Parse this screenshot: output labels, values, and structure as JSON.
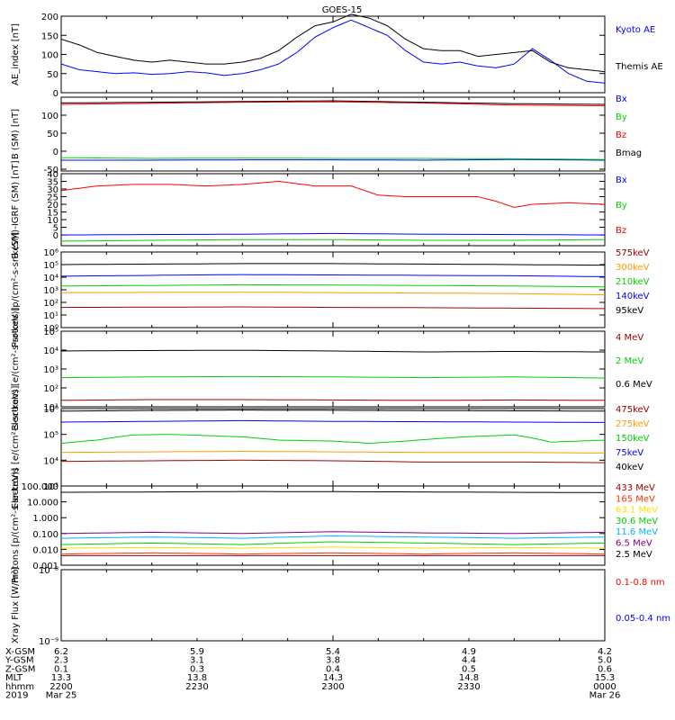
{
  "title": "GOES-15",
  "x_axis": {
    "rows": [
      {
        "label": "X-GSM",
        "values": [
          "6.2",
          "5.9",
          "5.4",
          "4.9",
          "4.2"
        ]
      },
      {
        "label": "Y-GSM",
        "values": [
          "2.3",
          "3.1",
          "3.8",
          "4.4",
          "5.0"
        ]
      },
      {
        "label": "Z-GSM",
        "values": [
          "0.1",
          "0.3",
          "0.4",
          "0.5",
          "0.6"
        ]
      },
      {
        "label": "MLT",
        "values": [
          "13.3",
          "13.8",
          "14.3",
          "14.8",
          "15.3"
        ]
      },
      {
        "label": "hhmm",
        "values": [
          "2200",
          "2230",
          "2300",
          "2330",
          "0000"
        ]
      },
      {
        "label": "2019",
        "values": [
          "Mar 25",
          "",
          "",
          "",
          "Mar 26"
        ]
      }
    ]
  },
  "chart_data": [
    {
      "type": "line",
      "ylabel": "AE_index [nT]",
      "ylim": [
        0,
        200
      ],
      "yticks": [
        0,
        50,
        100,
        150,
        200
      ],
      "ytick_labels": [
        "0",
        "50",
        "100",
        "150",
        "200"
      ],
      "series": [
        {
          "name": "Kyoto AE",
          "color": "#0000ff",
          "x": [
            0,
            2,
            4,
            6,
            8,
            10,
            12,
            14,
            16,
            18,
            20,
            22,
            24,
            26,
            28,
            30,
            32,
            34,
            36,
            38,
            40,
            42,
            44,
            46,
            48,
            50,
            52,
            54,
            56,
            58,
            60
          ],
          "values": [
            75,
            60,
            55,
            50,
            52,
            48,
            50,
            55,
            52,
            45,
            50,
            60,
            75,
            105,
            145,
            170,
            190,
            170,
            150,
            110,
            80,
            75,
            80,
            70,
            65,
            75,
            115,
            85,
            50,
            30,
            25
          ]
        },
        {
          "name": "Themis AE",
          "color": "#000000",
          "x": [
            0,
            2,
            4,
            6,
            8,
            10,
            12,
            14,
            16,
            18,
            20,
            22,
            24,
            26,
            28,
            30,
            32,
            34,
            36,
            38,
            40,
            42,
            44,
            46,
            48,
            50,
            52,
            54,
            56,
            58,
            60
          ],
          "values": [
            140,
            125,
            105,
            95,
            85,
            80,
            85,
            80,
            75,
            75,
            80,
            90,
            110,
            145,
            175,
            185,
            205,
            195,
            175,
            140,
            115,
            110,
            110,
            95,
            100,
            105,
            110,
            80,
            65,
            60,
            55
          ]
        }
      ]
    },
    {
      "type": "line",
      "ylabel": "B (SM) [nT]",
      "ylim": [
        -55,
        150
      ],
      "yticks": [
        -50,
        0,
        50,
        100
      ],
      "ytick_labels": [
        "-50",
        "0",
        "50",
        "100"
      ],
      "series": [
        {
          "name": "Bx",
          "color": "#0000ff",
          "x": [
            0,
            10,
            20,
            30,
            40,
            50,
            60
          ],
          "values": [
            -25,
            -25,
            -24,
            -24,
            -25,
            -23,
            -25
          ]
        },
        {
          "name": "By",
          "color": "#00d000",
          "x": [
            0,
            10,
            20,
            30,
            40,
            50,
            60
          ],
          "values": [
            -18,
            -20,
            -19,
            -20,
            -20,
            -21,
            -23
          ]
        },
        {
          "name": "Bz",
          "color": "#ff0000",
          "x": [
            0,
            10,
            20,
            30,
            40,
            50,
            60
          ],
          "values": [
            130,
            133,
            136,
            137,
            134,
            128,
            126
          ]
        },
        {
          "name": "Bmag",
          "color": "#000000",
          "x": [
            0,
            10,
            20,
            30,
            40,
            50,
            60
          ],
          "values": [
            134,
            136,
            138,
            140,
            136,
            132,
            130
          ]
        }
      ]
    },
    {
      "type": "line",
      "ylabel": "B (SM)-IGRF (SM) [nT]",
      "ylim": [
        -7,
        40
      ],
      "yticks": [
        0,
        5,
        10,
        15,
        20,
        25,
        30,
        35,
        40
      ],
      "ytick_labels": [
        "0",
        "5",
        "10",
        "15",
        "20",
        "25",
        "30",
        "35",
        "40"
      ],
      "series": [
        {
          "name": "Bx",
          "color": "#0000ff",
          "x": [
            0,
            10,
            20,
            30,
            40,
            50,
            60
          ],
          "values": [
            0,
            0.3,
            0.5,
            1,
            0.5,
            0.3,
            0
          ]
        },
        {
          "name": "By",
          "color": "#00d000",
          "x": [
            0,
            10,
            20,
            30,
            40,
            50,
            60
          ],
          "values": [
            -4,
            -3.5,
            -3,
            -3,
            -3.5,
            -3.5,
            -3
          ]
        },
        {
          "name": "Bz",
          "color": "#ff0000",
          "x": [
            0,
            4,
            8,
            12,
            16,
            20,
            24,
            28,
            32,
            35,
            38,
            42,
            46,
            48,
            50,
            52,
            56,
            60
          ],
          "values": [
            29,
            32,
            33,
            33,
            32,
            33,
            35,
            32,
            32,
            26,
            25,
            25,
            25,
            22,
            18,
            20,
            21,
            20
          ]
        }
      ]
    },
    {
      "type": "line",
      "scale": "log",
      "ylabel": "Protons [p/(cm²-s-sr-keV)]",
      "ylim": [
        1,
        1000000
      ],
      "yticks": [
        1,
        10,
        100,
        1000,
        10000,
        100000,
        1000000
      ],
      "ytick_labels": [
        "10⁰",
        "10¹",
        "10²",
        "10³",
        "10⁴",
        "10⁵",
        "10⁶"
      ],
      "series": [
        {
          "name": "575keV",
          "color": "#a00000",
          "x": [
            0,
            10,
            20,
            30,
            40,
            50,
            60
          ],
          "values": [
            40,
            42,
            44,
            40,
            38,
            35,
            32
          ]
        },
        {
          "name": "300keV",
          "color": "#ff9900",
          "x": [
            0,
            10,
            20,
            30,
            40,
            50,
            60
          ],
          "values": [
            600,
            620,
            650,
            600,
            550,
            500,
            400
          ]
        },
        {
          "name": "210keV",
          "color": "#00d000",
          "x": [
            0,
            10,
            20,
            30,
            40,
            50,
            60
          ],
          "values": [
            2000,
            2200,
            2500,
            2400,
            2200,
            2000,
            1700
          ]
        },
        {
          "name": "140keV",
          "color": "#0000ff",
          "x": [
            0,
            10,
            20,
            30,
            40,
            50,
            60
          ],
          "values": [
            12000,
            14000,
            16000,
            15000,
            14000,
            13000,
            11000
          ]
        },
        {
          "name": "95keV",
          "color": "#000000",
          "x": [
            0,
            10,
            20,
            30,
            40,
            50,
            60
          ],
          "values": [
            100000,
            110000,
            120000,
            120000,
            110000,
            100000,
            90000
          ]
        }
      ]
    },
    {
      "type": "line",
      "scale": "log",
      "ylabel": "Electrons [e/(cm²-s-sr-keV)]",
      "ylim": [
        10,
        100000
      ],
      "yticks": [
        10,
        100,
        1000,
        10000,
        100000
      ],
      "ytick_labels": [
        "10¹",
        "10²",
        "10³",
        "10⁴",
        "10⁵"
      ],
      "series": [
        {
          "name": "4 MeV",
          "color": "#a00000",
          "x": [
            0,
            10,
            20,
            30,
            40,
            50,
            60
          ],
          "values": [
            22,
            24,
            24,
            23,
            22,
            23,
            22
          ]
        },
        {
          "name": "2 MeV",
          "color": "#00d000",
          "x": [
            0,
            10,
            20,
            30,
            40,
            50,
            60
          ],
          "values": [
            350,
            380,
            400,
            380,
            350,
            380,
            330
          ]
        },
        {
          "name": "0.6 MeV",
          "color": "#000000",
          "x": [
            0,
            10,
            20,
            30,
            40,
            50,
            60
          ],
          "values": [
            9000,
            9500,
            9800,
            9000,
            8000,
            8500,
            8000
          ]
        }
      ]
    },
    {
      "type": "line",
      "scale": "log",
      "ylabel": "Electrons [e/(cm²-s-sr-keV)]",
      "ylim": [
        1000,
        1000000
      ],
      "yticks": [
        1000,
        10000,
        100000,
        1000000
      ],
      "ytick_labels": [
        "10³",
        "10⁴",
        "10⁵",
        "10⁶"
      ],
      "series": [
        {
          "name": "475keV",
          "color": "#a00000",
          "x": [
            0,
            10,
            20,
            30,
            40,
            50,
            60
          ],
          "values": [
            9000,
            9500,
            10000,
            9500,
            8500,
            8500,
            8000
          ]
        },
        {
          "name": "275keV",
          "color": "#ff9900",
          "x": [
            0,
            10,
            20,
            30,
            40,
            50,
            60
          ],
          "values": [
            20000,
            21000,
            22000,
            21000,
            20000,
            20000,
            19000
          ]
        },
        {
          "name": "150keV",
          "color": "#00d000",
          "x": [
            0,
            4,
            8,
            12,
            16,
            20,
            24,
            30,
            34,
            38,
            42,
            46,
            50,
            54,
            57,
            60
          ],
          "values": [
            45000,
            60000,
            95000,
            100000,
            90000,
            80000,
            60000,
            55000,
            45000,
            55000,
            70000,
            85000,
            95000,
            50000,
            55000,
            60000
          ]
        },
        {
          "name": "75keV",
          "color": "#0000ff",
          "x": [
            0,
            10,
            20,
            30,
            40,
            50,
            60
          ],
          "values": [
            300000,
            320000,
            340000,
            320000,
            310000,
            300000,
            290000
          ]
        },
        {
          "name": "40keV",
          "color": "#000000",
          "x": [
            0,
            10,
            20,
            30,
            40,
            50,
            60
          ],
          "values": [
            800000,
            850000,
            880000,
            860000,
            840000,
            820000,
            800000
          ]
        }
      ]
    },
    {
      "type": "line",
      "scale": "log",
      "ylabel": "Protons [p/(cm²-s-sr-keV)]",
      "ylim": [
        0.001,
        100
      ],
      "yticks": [
        0.001,
        0.01,
        0.1,
        1,
        10,
        100
      ],
      "ytick_labels": [
        "0.001",
        "0.010",
        "0.100",
        "1.000",
        "10.000",
        "100.000"
      ],
      "series": [
        {
          "name": "433 MeV",
          "color": "#a00000",
          "x": [
            0,
            10,
            20,
            30,
            40,
            50,
            60
          ],
          "values": [
            0.004,
            0.004,
            0.004,
            0.004,
            0.004,
            0.004,
            0.004
          ]
        },
        {
          "name": "165 MeV",
          "color": "#ff3300",
          "x": [
            0,
            10,
            20,
            30,
            40,
            50,
            60
          ],
          "values": [
            0.005,
            0.006,
            0.005,
            0.006,
            0.005,
            0.006,
            0.005
          ]
        },
        {
          "name": "63.1 MeV",
          "color": "#ffdd00",
          "x": [
            0,
            10,
            20,
            30,
            40,
            50,
            60
          ],
          "values": [
            0.012,
            0.013,
            0.012,
            0.014,
            0.012,
            0.013,
            0.012
          ]
        },
        {
          "name": "30.6 MeV",
          "color": "#00d000",
          "x": [
            0,
            10,
            20,
            30,
            40,
            50,
            60
          ],
          "values": [
            0.02,
            0.025,
            0.02,
            0.03,
            0.025,
            0.02,
            0.025
          ]
        },
        {
          "name": "11.6 MeV",
          "color": "#00b4ff",
          "x": [
            0,
            10,
            20,
            30,
            40,
            50,
            60
          ],
          "values": [
            0.05,
            0.06,
            0.05,
            0.07,
            0.06,
            0.05,
            0.06
          ]
        },
        {
          "name": "6.5 MeV",
          "color": "#800080",
          "x": [
            0,
            10,
            20,
            30,
            40,
            50,
            60
          ],
          "values": [
            0.1,
            0.12,
            0.1,
            0.13,
            0.11,
            0.1,
            0.12
          ]
        },
        {
          "name": "2.5 MeV",
          "color": "#000000",
          "x": [
            0,
            10,
            20,
            30,
            40,
            50,
            60
          ],
          "values": [
            40,
            42,
            45,
            44,
            42,
            40,
            38
          ]
        }
      ]
    },
    {
      "type": "line",
      "scale": "log",
      "ylabel": "Xray Flux [W/m²]",
      "ylim": [
        1e-09,
        1e-08
      ],
      "yticks": [
        1e-09,
        1e-08
      ],
      "ytick_labels": [
        "10⁻⁹",
        "10⁻⁸"
      ],
      "series": [
        {
          "name": "0.1-0.8 nm",
          "color": "#ff0000"
        },
        {
          "name": "0.05-0.4 nm",
          "color": "#0000ff"
        }
      ]
    }
  ]
}
